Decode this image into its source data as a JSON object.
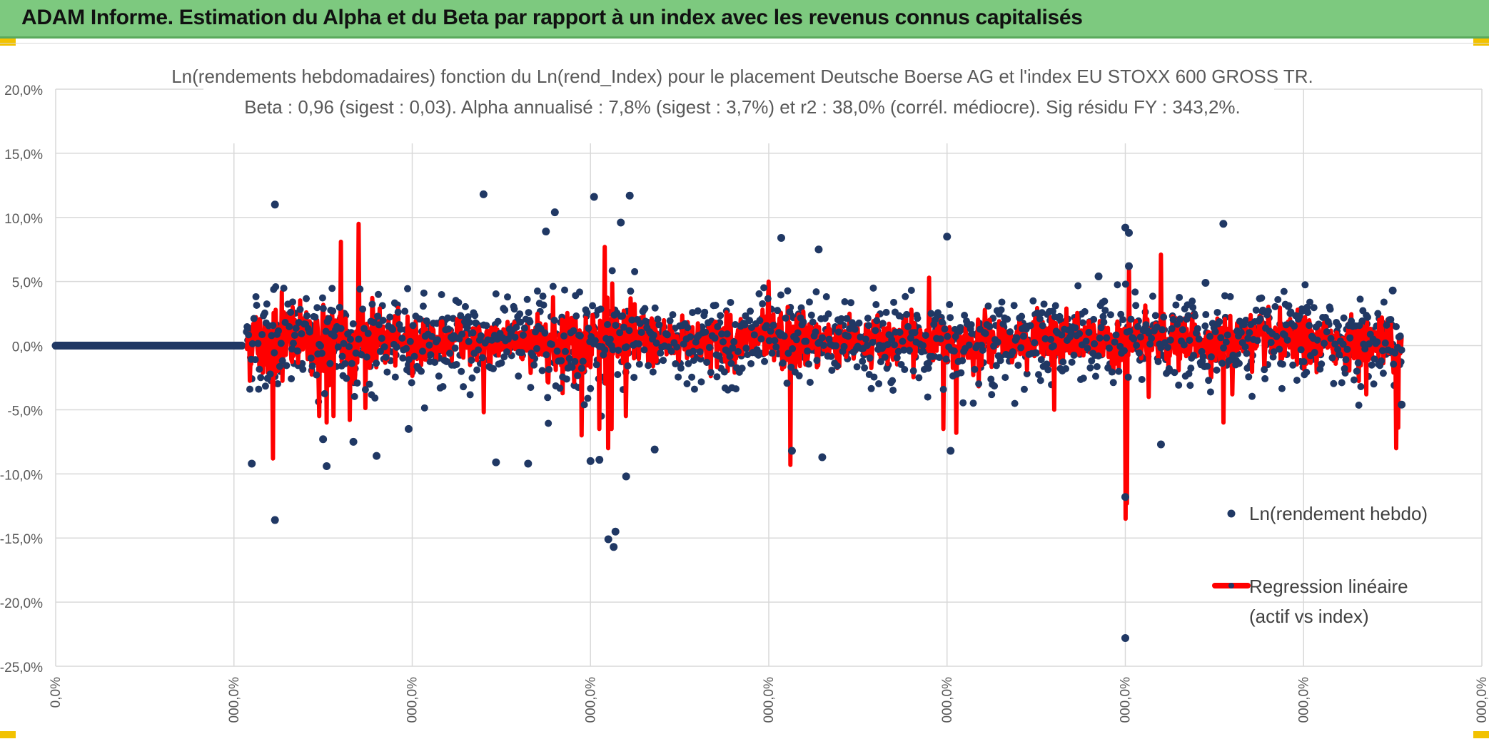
{
  "banner": {
    "title": "ADAM Informe. Estimation du Alpha et du Beta par rapport à un index avec les revenus connus capitalisés",
    "accent_color": "#7dc97f",
    "corner_color": "#f2c200"
  },
  "chart_data": {
    "type": "scatter",
    "title": "Ln(rendements hebdomadaires) fonction du Ln(rend_Index) pour le placement Deutsche Boerse AG et l'index EU STOXX 600 GROSS TR.",
    "subtitle": "Beta : 0,96 (sigest : 0,03). Alpha annualisé : 7,8% (sigest : 3,7%) et r2 : 38,0% (corrél. médiocre). Sig résidu FY : 343,2%.",
    "y_tick_labels": [
      "20,0%",
      "15,0%",
      "10,0%",
      "5,0%",
      "0,0%",
      "-5,0%",
      "-10,0%",
      "-15,0%",
      "-20,0%",
      "-25,0%"
    ],
    "y_ticks": [
      20,
      15,
      10,
      5,
      0,
      -5,
      -10,
      -15,
      -20,
      -25
    ],
    "ylim": [
      -25,
      20
    ],
    "x_tick_labels": [
      "0,0%",
      "000,0%",
      "000,0%",
      "000,0%",
      "000,0%",
      "000,0%",
      "000,0%",
      "000,0%",
      "000,0%"
    ],
    "xlim": [
      0,
      8
    ],
    "grid": true,
    "legend_placement": "right",
    "series": [
      {
        "name": "Ln(rendement hebdo)",
        "kind": "scatter",
        "color": "#203864",
        "flat_segment": {
          "x_start": 0.0,
          "x_end": 1.05,
          "y": 0
        },
        "active_segment": {
          "x_start": 1.07,
          "x_end": 7.55
        },
        "outliers": [
          {
            "x": 1.23,
            "y": 11.0
          },
          {
            "x": 1.23,
            "y": -13.6
          },
          {
            "x": 1.1,
            "y": -9.2
          },
          {
            "x": 1.5,
            "y": -7.3
          },
          {
            "x": 1.52,
            "y": -9.4
          },
          {
            "x": 1.67,
            "y": -7.5
          },
          {
            "x": 1.8,
            "y": -8.6
          },
          {
            "x": 1.98,
            "y": -6.5
          },
          {
            "x": 2.4,
            "y": 11.8
          },
          {
            "x": 2.47,
            "y": -9.1
          },
          {
            "x": 2.8,
            "y": 10.4
          },
          {
            "x": 2.75,
            "y": 8.9
          },
          {
            "x": 3.02,
            "y": 11.6
          },
          {
            "x": 3.22,
            "y": 11.7
          },
          {
            "x": 3.17,
            "y": 9.6
          },
          {
            "x": 3.1,
            "y": -15.1
          },
          {
            "x": 3.13,
            "y": -15.7
          },
          {
            "x": 3.14,
            "y": -14.5
          },
          {
            "x": 3.2,
            "y": -10.2
          },
          {
            "x": 3.05,
            "y": -8.9
          },
          {
            "x": 3.0,
            "y": -9.0
          },
          {
            "x": 2.65,
            "y": -9.2
          },
          {
            "x": 3.36,
            "y": -8.1
          },
          {
            "x": 4.07,
            "y": 8.4
          },
          {
            "x": 4.13,
            "y": -8.2
          },
          {
            "x": 4.28,
            "y": 7.5
          },
          {
            "x": 4.3,
            "y": -8.7
          },
          {
            "x": 5.0,
            "y": 8.5
          },
          {
            "x": 5.02,
            "y": -8.2
          },
          {
            "x": 6.0,
            "y": 9.2
          },
          {
            "x": 6.02,
            "y": 8.8
          },
          {
            "x": 6.02,
            "y": 6.2
          },
          {
            "x": 6.0,
            "y": -11.8
          },
          {
            "x": 6.0,
            "y": -22.8
          },
          {
            "x": 6.2,
            "y": -7.7
          },
          {
            "x": 6.55,
            "y": 9.5
          },
          {
            "x": 6.45,
            "y": 4.9
          },
          {
            "x": 5.85,
            "y": 5.4
          },
          {
            "x": 7.5,
            "y": 4.3
          },
          {
            "x": 7.55,
            "y": -4.6
          }
        ]
      },
      {
        "name": "Regression linéaire (actif vs index)",
        "legend_lines": [
          "Regression linéaire",
          "(actif vs index)"
        ],
        "kind": "line",
        "color": "#ff0000",
        "active_segment": {
          "x_start": 1.07,
          "x_end": 7.55
        },
        "spikes": [
          {
            "x": 1.22,
            "y": -8.8
          },
          {
            "x": 1.27,
            "y": 4.2
          },
          {
            "x": 1.48,
            "y": -5.5
          },
          {
            "x": 1.52,
            "y": -6.0
          },
          {
            "x": 1.56,
            "y": -5.5
          },
          {
            "x": 1.6,
            "y": 8.1
          },
          {
            "x": 1.65,
            "y": -5.8
          },
          {
            "x": 1.7,
            "y": 9.5
          },
          {
            "x": 2.4,
            "y": -5.2
          },
          {
            "x": 2.95,
            "y": -7.0
          },
          {
            "x": 3.05,
            "y": -6.5
          },
          {
            "x": 3.08,
            "y": 7.7
          },
          {
            "x": 3.1,
            "y": -8.0
          },
          {
            "x": 3.12,
            "y": -6.5
          },
          {
            "x": 3.2,
            "y": -5.5
          },
          {
            "x": 4.12,
            "y": -9.3
          },
          {
            "x": 4.0,
            "y": 5.0
          },
          {
            "x": 4.9,
            "y": 5.3
          },
          {
            "x": 4.98,
            "y": -6.5
          },
          {
            "x": 5.05,
            "y": -6.8
          },
          {
            "x": 5.6,
            "y": -5.0
          },
          {
            "x": 6.0,
            "y": -13.5
          },
          {
            "x": 6.01,
            "y": -12.3
          },
          {
            "x": 6.02,
            "y": 6.0
          },
          {
            "x": 6.2,
            "y": 7.1
          },
          {
            "x": 6.13,
            "y": -4.0
          },
          {
            "x": 6.55,
            "y": -6.0
          },
          {
            "x": 6.6,
            "y": -3.8
          },
          {
            "x": 7.35,
            "y": -3.8
          },
          {
            "x": 7.52,
            "y": -8.0
          },
          {
            "x": 7.53,
            "y": -6.4
          }
        ]
      }
    ]
  }
}
